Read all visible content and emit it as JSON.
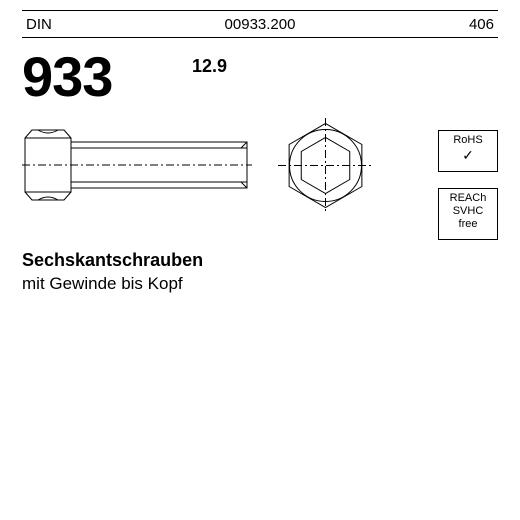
{
  "header": {
    "din": "DIN",
    "code": "00933.200",
    "num": "406"
  },
  "standard_number": "933",
  "grade": "12.9",
  "description": {
    "line1": "Sechskantschrauben",
    "line2": "mit Gewinde bis Kopf"
  },
  "certifications": {
    "rohs": {
      "label": "RoHS",
      "mark": "✓"
    },
    "reach": {
      "line1": "REACh",
      "line2": "SVHC",
      "line3": "free"
    }
  },
  "drawing": {
    "stroke": "#000000",
    "stroke_width": 1,
    "centerline_dash": "8 3 2 3",
    "background": "#ffffff"
  }
}
